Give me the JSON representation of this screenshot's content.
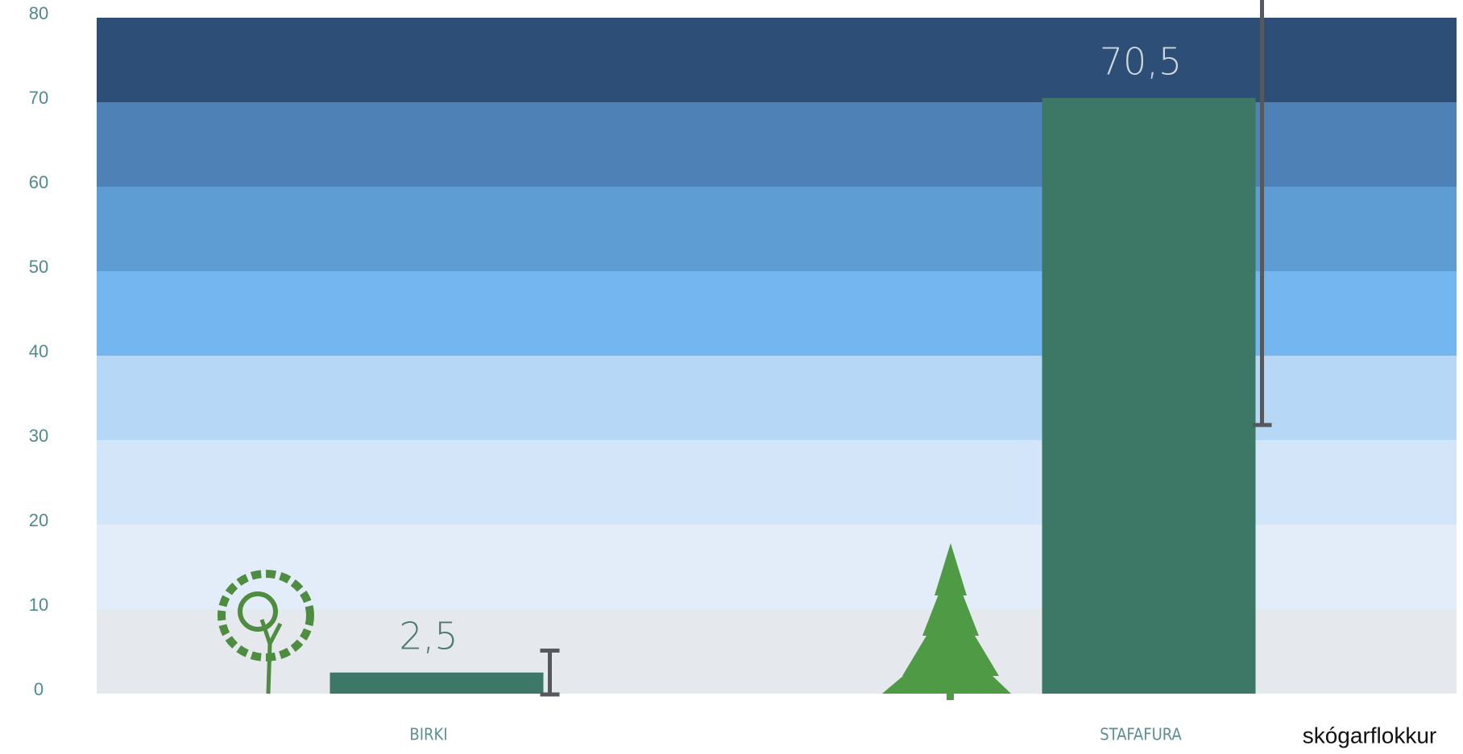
{
  "chart_data": {
    "type": "bar",
    "categories": [
      "BIRKI",
      "STAFAFURA"
    ],
    "values": [
      2.5,
      70.5
    ],
    "value_labels": [
      "2,5",
      "70,5"
    ],
    "errors": [
      2.6,
      38.7
    ],
    "color": "#3d7867",
    "error_color": "#55585c",
    "x_label": "skógarflokkur",
    "ylim": [
      0,
      80
    ],
    "yticks": [
      0,
      10,
      20,
      30,
      40,
      50,
      60,
      70,
      80
    ],
    "band_colors": [
      "#e5e8ec",
      "#e3edf9",
      "#d3e5f8",
      "#b6d7f5",
      "#74b6f0",
      "#5e9dd4",
      "#4e82b6",
      "#2d4e77"
    ]
  }
}
